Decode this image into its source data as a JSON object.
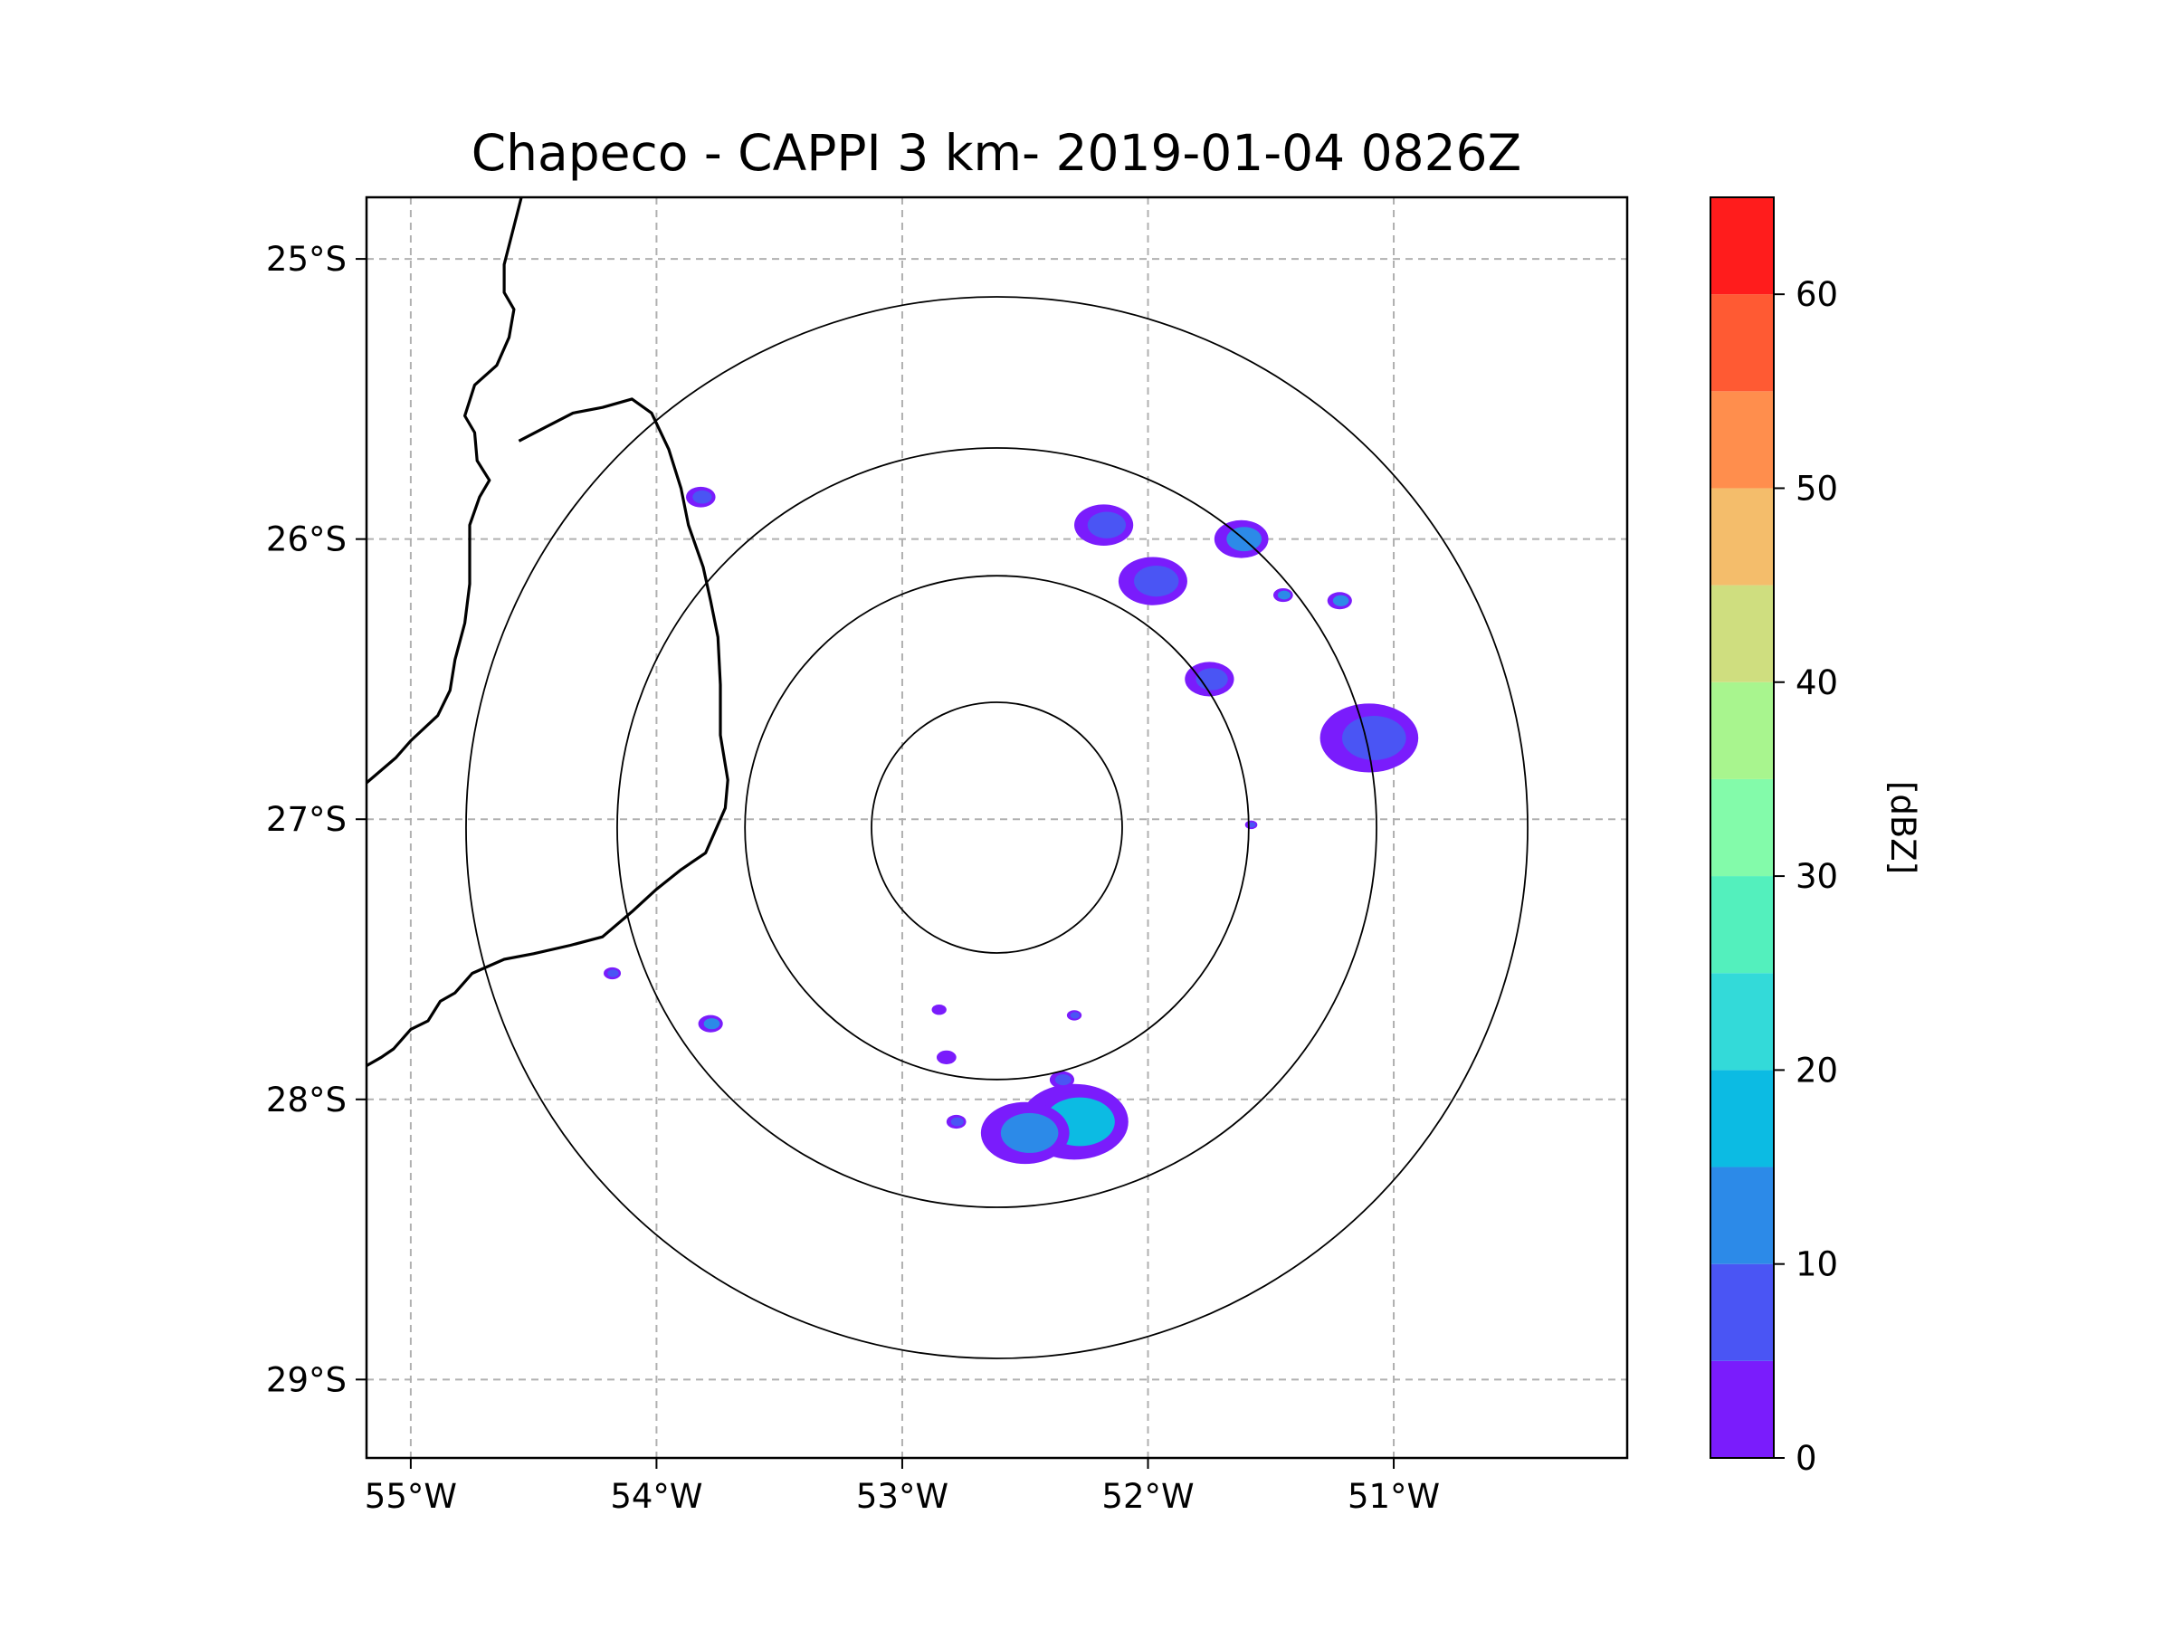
{
  "chart_data": {
    "type": "heatmap",
    "title": "Chapeco - CAPPI 3 km- 2019-01-04 0826Z",
    "xlabel": "",
    "ylabel": "",
    "xlim": [
      -55.18,
      -50.05
    ],
    "ylim": [
      -29.28,
      -24.78
    ],
    "x_ticks": [
      -55,
      -54,
      -53,
      -52,
      -51
    ],
    "x_tick_labels": [
      "55°W",
      "54°W",
      "53°W",
      "52°W",
      "51°W"
    ],
    "y_ticks": [
      -25,
      -26,
      -27,
      -28,
      -29
    ],
    "y_tick_labels": [
      "25°S",
      "26°S",
      "27°S",
      "28°S",
      "29°S"
    ],
    "radar_center": {
      "lon": -52.615,
      "lat": -27.03
    },
    "range_rings_km": [
      50,
      100,
      150,
      200
    ],
    "range_ring_radii_deg": [
      0.51,
      1.025,
      1.545,
      2.16
    ],
    "colorbar": {
      "label": "[dBZ]",
      "min": 0,
      "max": 65,
      "ticks": [
        0,
        10,
        20,
        30,
        40,
        50,
        60
      ],
      "tick_labels": [
        "0",
        "10",
        "20",
        "30",
        "40",
        "50",
        "60"
      ],
      "levels": [
        0,
        5,
        10,
        15,
        20,
        25,
        30,
        35,
        40,
        45,
        50,
        55,
        60,
        65
      ],
      "colors": [
        "#7a1cfc",
        "#4a55f4",
        "#2c8ae8",
        "#0cbbe3",
        "#33dad9",
        "#53f0bd",
        "#83fbaa",
        "#a8f58e",
        "#cfde7f",
        "#f4bd6b",
        "#ff8e4d",
        "#ff5a33",
        "#ff1c1c"
      ]
    },
    "borders": [
      [
        [
          -54.55,
          -24.78
        ],
        [
          -54.62,
          -25.02
        ],
        [
          -54.62,
          -25.12
        ],
        [
          -54.58,
          -25.18
        ],
        [
          -54.6,
          -25.28
        ],
        [
          -54.65,
          -25.38
        ],
        [
          -54.74,
          -25.45
        ],
        [
          -54.78,
          -25.56
        ],
        [
          -54.74,
          -25.62
        ],
        [
          -54.73,
          -25.72
        ],
        [
          -54.68,
          -25.79
        ],
        [
          -54.72,
          -25.85
        ],
        [
          -54.76,
          -25.95
        ],
        [
          -54.76,
          -26.07
        ],
        [
          -54.76,
          -26.16
        ],
        [
          -54.78,
          -26.3
        ],
        [
          -54.82,
          -26.43
        ],
        [
          -54.84,
          -26.54
        ],
        [
          -54.89,
          -26.63
        ],
        [
          -55.0,
          -26.72
        ],
        [
          -55.06,
          -26.78
        ],
        [
          -55.18,
          -26.87
        ]
      ],
      [
        [
          -54.56,
          -25.65
        ],
        [
          -54.45,
          -25.6
        ],
        [
          -54.34,
          -25.55
        ],
        [
          -54.22,
          -25.53
        ],
        [
          -54.1,
          -25.5
        ],
        [
          -54.02,
          -25.55
        ],
        [
          -53.95,
          -25.68
        ],
        [
          -53.9,
          -25.82
        ],
        [
          -53.87,
          -25.95
        ],
        [
          -53.81,
          -26.1
        ],
        [
          -53.78,
          -26.22
        ],
        [
          -53.75,
          -26.35
        ],
        [
          -53.74,
          -26.52
        ],
        [
          -53.74,
          -26.7
        ],
        [
          -53.71,
          -26.86
        ],
        [
          -53.72,
          -26.96
        ],
        [
          -53.8,
          -27.12
        ],
        [
          -53.9,
          -27.18
        ],
        [
          -54.0,
          -27.25
        ],
        [
          -54.1,
          -27.33
        ],
        [
          -54.22,
          -27.42
        ],
        [
          -54.35,
          -27.45
        ],
        [
          -54.5,
          -27.48
        ],
        [
          -54.62,
          -27.5
        ],
        [
          -54.75,
          -27.55
        ],
        [
          -54.82,
          -27.62
        ],
        [
          -54.88,
          -27.65
        ],
        [
          -54.93,
          -27.72
        ],
        [
          -55.0,
          -27.75
        ],
        [
          -55.07,
          -27.82
        ],
        [
          -55.12,
          -27.85
        ],
        [
          -55.18,
          -27.88
        ]
      ]
    ],
    "echoes": [
      {
        "lon": -52.3,
        "lat": -28.08,
        "dbz": 18,
        "size": 0.22
      },
      {
        "lon": -52.5,
        "lat": -28.12,
        "dbz": 12,
        "size": 0.18
      },
      {
        "lon": -52.35,
        "lat": -27.93,
        "dbz": 8,
        "size": 0.05
      },
      {
        "lon": -51.98,
        "lat": -26.15,
        "dbz": 8,
        "size": 0.14
      },
      {
        "lon": -52.18,
        "lat": -25.95,
        "dbz": 5,
        "size": 0.12
      },
      {
        "lon": -51.75,
        "lat": -26.5,
        "dbz": 8,
        "size": 0.1
      },
      {
        "lon": -51.62,
        "lat": -26.0,
        "dbz": 12,
        "size": 0.11
      },
      {
        "lon": -51.22,
        "lat": -26.22,
        "dbz": 14,
        "size": 0.05
      },
      {
        "lon": -51.45,
        "lat": -26.2,
        "dbz": 10,
        "size": 0.04
      },
      {
        "lon": -51.1,
        "lat": -26.71,
        "dbz": 5,
        "size": 0.2
      },
      {
        "lon": -53.82,
        "lat": -25.85,
        "dbz": 6,
        "size": 0.06
      },
      {
        "lon": -53.78,
        "lat": -27.73,
        "dbz": 10,
        "size": 0.05
      },
      {
        "lon": -54.18,
        "lat": -27.55,
        "dbz": 8,
        "size": 0.035
      },
      {
        "lon": -52.78,
        "lat": -28.08,
        "dbz": 5,
        "size": 0.04
      },
      {
        "lon": -52.82,
        "lat": -27.85,
        "dbz": 4,
        "size": 0.04
      },
      {
        "lon": -52.85,
        "lat": -27.68,
        "dbz": 3,
        "size": 0.03
      },
      {
        "lon": -52.3,
        "lat": -27.7,
        "dbz": 6,
        "size": 0.03
      },
      {
        "lon": -51.58,
        "lat": -27.02,
        "dbz": 5,
        "size": 0.025
      }
    ]
  }
}
